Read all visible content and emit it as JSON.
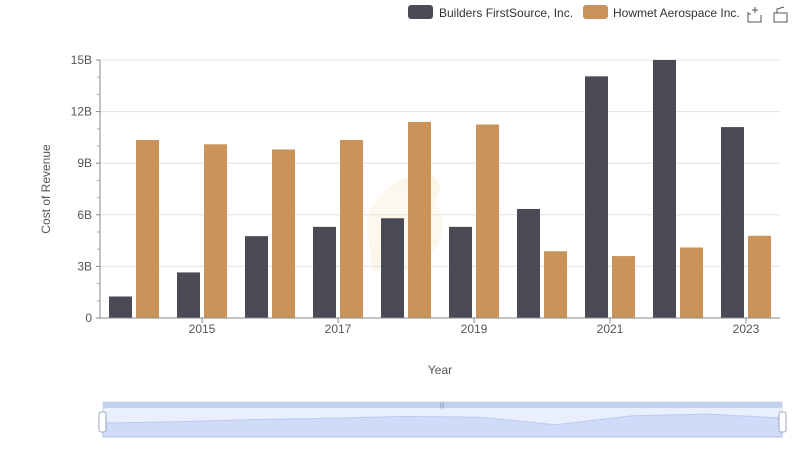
{
  "chart_data": {
    "type": "bar",
    "xlabel": "Year",
    "ylabel": "Cost of Revenue",
    "categories": [
      "2014",
      "2015",
      "2016",
      "2017",
      "2018",
      "2019",
      "2020",
      "2021",
      "2022",
      "2023"
    ],
    "x_tick_labels": [
      "2015",
      "2017",
      "2019",
      "2021",
      "2023"
    ],
    "y_ticks": [
      "0",
      "3B",
      "6B",
      "9B",
      "12B",
      "15B"
    ],
    "ylim": [
      0,
      15000000000
    ],
    "grid": true,
    "legend_position": "top-right",
    "series": [
      {
        "name": "Builders FirstSource, Inc.",
        "color": "#4a4956",
        "values": [
          1250000000,
          2650000000,
          4760000000,
          5300000000,
          5800000000,
          5300000000,
          6340000000,
          14050000000,
          15000000000,
          11100000000
        ]
      },
      {
        "name": "Howmet Aerospace Inc.",
        "color": "#c9935a",
        "values": [
          10350000000,
          10100000000,
          9800000000,
          10350000000,
          11400000000,
          11250000000,
          3880000000,
          3600000000,
          4100000000,
          4780000000
        ]
      }
    ]
  },
  "toolbar": {
    "icons": [
      "zoom-icon",
      "restore-icon"
    ]
  }
}
